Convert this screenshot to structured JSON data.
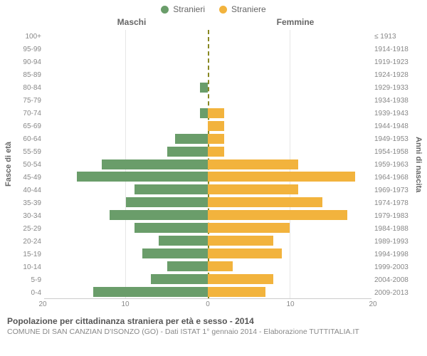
{
  "legend": {
    "male": {
      "label": "Stranieri",
      "color": "#6a9d6a"
    },
    "female": {
      "label": "Straniere",
      "color": "#f2b33d"
    }
  },
  "header": {
    "left": "Maschi",
    "right": "Femmine"
  },
  "axis_labels": {
    "left": "Fasce di età",
    "right": "Anni di nascita"
  },
  "xaxis": {
    "max": 20,
    "ticks_left": [
      20,
      10,
      0
    ],
    "ticks_right": [
      0,
      10,
      20
    ]
  },
  "colors": {
    "background": "#ffffff",
    "grid": "#e6e6e6",
    "centerline": "#888822",
    "text": "#666666",
    "subtext": "#888888"
  },
  "rows": [
    {
      "age": "100+",
      "birth": "≤ 1913",
      "m": 0,
      "f": 0
    },
    {
      "age": "95-99",
      "birth": "1914-1918",
      "m": 0,
      "f": 0
    },
    {
      "age": "90-94",
      "birth": "1919-1923",
      "m": 0,
      "f": 0
    },
    {
      "age": "85-89",
      "birth": "1924-1928",
      "m": 0,
      "f": 0
    },
    {
      "age": "80-84",
      "birth": "1929-1933",
      "m": 1,
      "f": 0
    },
    {
      "age": "75-79",
      "birth": "1934-1938",
      "m": 0,
      "f": 0
    },
    {
      "age": "70-74",
      "birth": "1939-1943",
      "m": 1,
      "f": 2
    },
    {
      "age": "65-69",
      "birth": "1944-1948",
      "m": 0,
      "f": 2
    },
    {
      "age": "60-64",
      "birth": "1949-1953",
      "m": 4,
      "f": 2
    },
    {
      "age": "55-59",
      "birth": "1954-1958",
      "m": 5,
      "f": 2
    },
    {
      "age": "50-54",
      "birth": "1959-1963",
      "m": 13,
      "f": 11
    },
    {
      "age": "45-49",
      "birth": "1964-1968",
      "m": 16,
      "f": 18
    },
    {
      "age": "40-44",
      "birth": "1969-1973",
      "m": 9,
      "f": 11
    },
    {
      "age": "35-39",
      "birth": "1974-1978",
      "m": 10,
      "f": 14
    },
    {
      "age": "30-34",
      "birth": "1979-1983",
      "m": 12,
      "f": 17
    },
    {
      "age": "25-29",
      "birth": "1984-1988",
      "m": 9,
      "f": 10
    },
    {
      "age": "20-24",
      "birth": "1989-1993",
      "m": 6,
      "f": 8
    },
    {
      "age": "15-19",
      "birth": "1994-1998",
      "m": 8,
      "f": 9
    },
    {
      "age": "10-14",
      "birth": "1999-2003",
      "m": 5,
      "f": 3
    },
    {
      "age": "5-9",
      "birth": "2004-2008",
      "m": 7,
      "f": 8
    },
    {
      "age": "0-4",
      "birth": "2009-2013",
      "m": 14,
      "f": 7
    }
  ],
  "footer": {
    "title": "Popolazione per cittadinanza straniera per età e sesso - 2014",
    "subtitle": "COMUNE DI SAN CANZIAN D'ISONZO (GO) - Dati ISTAT 1° gennaio 2014 - Elaborazione TUTTITALIA.IT"
  }
}
